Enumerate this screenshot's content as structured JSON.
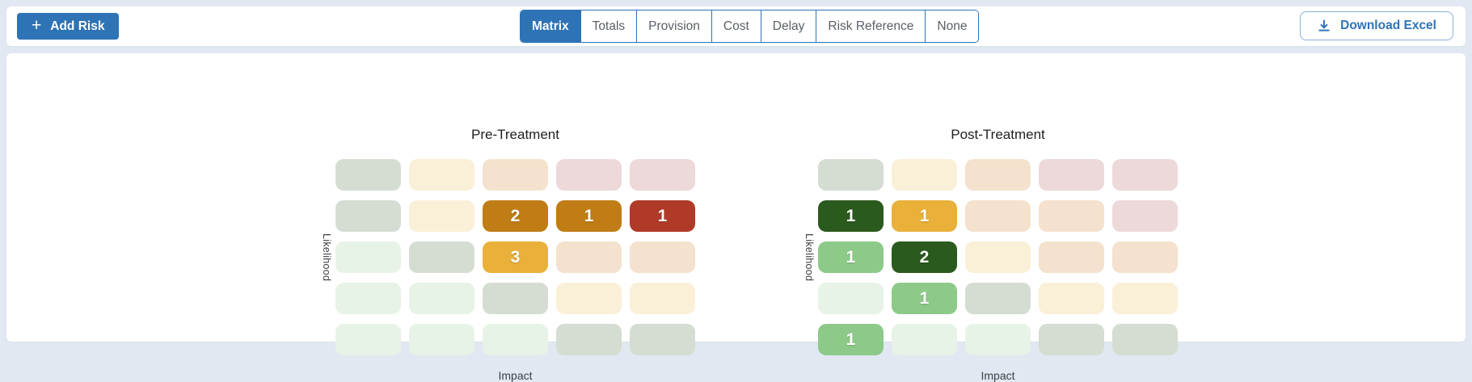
{
  "toolbar": {
    "add_risk_label": "Add Risk",
    "tabs": [
      {
        "label": "Matrix",
        "active": true
      },
      {
        "label": "Totals",
        "active": false
      },
      {
        "label": "Provision",
        "active": false
      },
      {
        "label": "Cost",
        "active": false
      },
      {
        "label": "Delay",
        "active": false
      },
      {
        "label": "Risk Reference",
        "active": false
      },
      {
        "label": "None",
        "active": false
      }
    ],
    "download_label": "Download Excel"
  },
  "palette": {
    "primary_blue": "#2e73b5",
    "page_background": "#e1e8f1",
    "card_background": "#ffffff",
    "cell_low": "#e7f3e6",
    "cell_sage": "#d5ddd2",
    "cell_cream": "#faf0d8",
    "cell_tan": "#f4e2ce",
    "cell_pink": "#edd8da",
    "cell_active_green": "#8dca8a",
    "cell_active_dark_green": "#2b5a1e",
    "cell_active_amber": "#e9b03a",
    "cell_active_orange": "#c07d16",
    "cell_active_red": "#b03a28"
  },
  "matrices": [
    {
      "title": "Pre-Treatment",
      "y_axis_label": "Likelihood",
      "x_axis_label": "Impact",
      "rows": [
        [
          {
            "color": "sage",
            "value": ""
          },
          {
            "color": "cream",
            "value": ""
          },
          {
            "color": "tan",
            "value": ""
          },
          {
            "color": "pink",
            "value": ""
          },
          {
            "color": "pink",
            "value": ""
          }
        ],
        [
          {
            "color": "sage",
            "value": ""
          },
          {
            "color": "cream",
            "value": ""
          },
          {
            "color": "orange",
            "value": "2"
          },
          {
            "color": "orange",
            "value": "1"
          },
          {
            "color": "red",
            "value": "1"
          }
        ],
        [
          {
            "color": "low",
            "value": ""
          },
          {
            "color": "sage",
            "value": ""
          },
          {
            "color": "amber",
            "value": "3"
          },
          {
            "color": "tan",
            "value": ""
          },
          {
            "color": "tan",
            "value": ""
          }
        ],
        [
          {
            "color": "low",
            "value": ""
          },
          {
            "color": "low",
            "value": ""
          },
          {
            "color": "sage",
            "value": ""
          },
          {
            "color": "cream",
            "value": ""
          },
          {
            "color": "cream",
            "value": ""
          }
        ],
        [
          {
            "color": "low",
            "value": ""
          },
          {
            "color": "low",
            "value": ""
          },
          {
            "color": "low",
            "value": ""
          },
          {
            "color": "sage",
            "value": ""
          },
          {
            "color": "sage",
            "value": ""
          }
        ]
      ]
    },
    {
      "title": "Post-Treatment",
      "y_axis_label": "Likelihood",
      "x_axis_label": "Impact",
      "rows": [
        [
          {
            "color": "sage",
            "value": ""
          },
          {
            "color": "cream",
            "value": ""
          },
          {
            "color": "tan",
            "value": ""
          },
          {
            "color": "pink",
            "value": ""
          },
          {
            "color": "pink",
            "value": ""
          }
        ],
        [
          {
            "color": "dark-green",
            "value": "1"
          },
          {
            "color": "amber",
            "value": "1"
          },
          {
            "color": "tan",
            "value": ""
          },
          {
            "color": "tan",
            "value": ""
          },
          {
            "color": "pink",
            "value": ""
          }
        ],
        [
          {
            "color": "green",
            "value": "1"
          },
          {
            "color": "dark-green",
            "value": "2"
          },
          {
            "color": "cream",
            "value": ""
          },
          {
            "color": "tan",
            "value": ""
          },
          {
            "color": "tan",
            "value": ""
          }
        ],
        [
          {
            "color": "low",
            "value": ""
          },
          {
            "color": "green",
            "value": "1"
          },
          {
            "color": "sage",
            "value": ""
          },
          {
            "color": "cream",
            "value": ""
          },
          {
            "color": "cream",
            "value": ""
          }
        ],
        [
          {
            "color": "green",
            "value": "1"
          },
          {
            "color": "low",
            "value": ""
          },
          {
            "color": "low",
            "value": ""
          },
          {
            "color": "sage",
            "value": ""
          },
          {
            "color": "sage",
            "value": ""
          }
        ]
      ]
    }
  ]
}
